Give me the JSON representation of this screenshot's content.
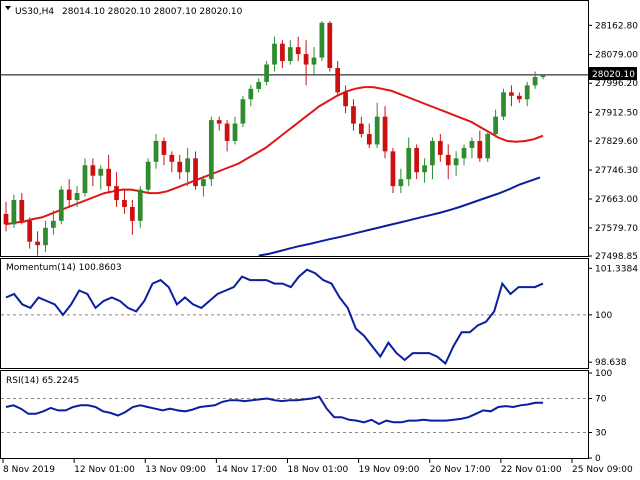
{
  "header": {
    "symbol_label": "US30,H4",
    "ohlc_label": "28014.10 28020.10 28007.10 28020.10"
  },
  "colors": {
    "background": "#ffffff",
    "bull_candle": "#2e8b2e",
    "bear_candle": "#cc1010",
    "ma_fast": "#e01515",
    "ma_slow": "#0a1f9e",
    "indicator_line": "#0a1f9e",
    "price_tag_bg": "#000000",
    "price_tag_text": "#ffffff"
  },
  "chart_data": [
    {
      "type": "candlestick",
      "title": "US30,H4",
      "ylim": [
        27498.85,
        28230
      ],
      "y_ticks": [
        "28162.80",
        "28079.00",
        "27996.20",
        "27912.50",
        "27829.60",
        "27746.30",
        "27663.00",
        "27579.70",
        "27498.85"
      ],
      "last_price_label": "28020.10",
      "last_price": 28020.1,
      "candles": [
        [
          27620,
          27655,
          27570,
          27590
        ],
        [
          27590,
          27675,
          27580,
          27660
        ],
        [
          27660,
          27680,
          27590,
          27600
        ],
        [
          27600,
          27610,
          27520,
          27540
        ],
        [
          27540,
          27570,
          27500,
          27530
        ],
        [
          27530,
          27600,
          27510,
          27580
        ],
        [
          27580,
          27630,
          27560,
          27600
        ],
        [
          27600,
          27700,
          27590,
          27690
        ],
        [
          27690,
          27720,
          27640,
          27660
        ],
        [
          27660,
          27700,
          27640,
          27680
        ],
        [
          27680,
          27780,
          27670,
          27760
        ],
        [
          27760,
          27780,
          27700,
          27730
        ],
        [
          27730,
          27760,
          27690,
          27750
        ],
        [
          27750,
          27790,
          27680,
          27700
        ],
        [
          27700,
          27740,
          27640,
          27660
        ],
        [
          27660,
          27690,
          27620,
          27640
        ],
        [
          27640,
          27660,
          27560,
          27600
        ],
        [
          27600,
          27700,
          27580,
          27690
        ],
        [
          27690,
          27780,
          27680,
          27770
        ],
        [
          27770,
          27850,
          27750,
          27830
        ],
        [
          27830,
          27840,
          27760,
          27790
        ],
        [
          27790,
          27800,
          27740,
          27770
        ],
        [
          27770,
          27790,
          27720,
          27740
        ],
        [
          27740,
          27810,
          27700,
          27780
        ],
        [
          27780,
          27800,
          27690,
          27700
        ],
        [
          27700,
          27730,
          27670,
          27720
        ],
        [
          27720,
          27900,
          27700,
          27890
        ],
        [
          27890,
          27900,
          27860,
          27880
        ],
        [
          27880,
          27890,
          27800,
          27830
        ],
        [
          27830,
          27900,
          27820,
          27880
        ],
        [
          27880,
          27960,
          27870,
          27950
        ],
        [
          27950,
          27990,
          27930,
          27980
        ],
        [
          27980,
          28010,
          27970,
          28000
        ],
        [
          28000,
          28060,
          27990,
          28050
        ],
        [
          28050,
          28130,
          28030,
          28110
        ],
        [
          28110,
          28120,
          28040,
          28060
        ],
        [
          28060,
          28120,
          28050,
          28100
        ],
        [
          28100,
          28130,
          28060,
          28080
        ],
        [
          28080,
          28120,
          27990,
          28050
        ],
        [
          28050,
          28100,
          28020,
          28070
        ],
        [
          28070,
          28175,
          28060,
          28170
        ],
        [
          28170,
          28175,
          28030,
          28040
        ],
        [
          28040,
          28060,
          27960,
          27970
        ],
        [
          27970,
          27990,
          27910,
          27930
        ],
        [
          27930,
          27950,
          27860,
          27880
        ],
        [
          27880,
          27900,
          27840,
          27850
        ],
        [
          27850,
          27880,
          27810,
          27820
        ],
        [
          27820,
          27940,
          27810,
          27900
        ],
        [
          27900,
          27930,
          27780,
          27800
        ],
        [
          27800,
          27810,
          27680,
          27700
        ],
        [
          27700,
          27750,
          27680,
          27720
        ],
        [
          27720,
          27840,
          27700,
          27810
        ],
        [
          27810,
          27820,
          27720,
          27740
        ],
        [
          27740,
          27780,
          27710,
          27760
        ],
        [
          27760,
          27840,
          27720,
          27830
        ],
        [
          27830,
          27850,
          27770,
          27790
        ],
        [
          27790,
          27820,
          27720,
          27760
        ],
        [
          27760,
          27800,
          27730,
          27780
        ],
        [
          27780,
          27820,
          27760,
          27810
        ],
        [
          27810,
          27840,
          27780,
          27830
        ],
        [
          27830,
          27860,
          27770,
          27780
        ],
        [
          27780,
          27860,
          27770,
          27850
        ],
        [
          27850,
          27920,
          27840,
          27900
        ],
        [
          27900,
          27980,
          27890,
          27970
        ],
        [
          27970,
          27990,
          27930,
          27960
        ],
        [
          27960,
          27970,
          27940,
          27950
        ],
        [
          27950,
          28000,
          27930,
          27990
        ],
        [
          27990,
          28030,
          27980,
          28014.1
        ],
        [
          28014.1,
          28020.1,
          28007.1,
          28020.1
        ]
      ],
      "ma_fast": [
        27590,
        27595,
        27598,
        27605,
        27610,
        27620,
        27630,
        27640,
        27650,
        27660,
        27670,
        27680,
        27685,
        27690,
        27690,
        27685,
        27680,
        27680,
        27685,
        27695,
        27705,
        27715,
        27725,
        27735,
        27745,
        27755,
        27765,
        27780,
        27795,
        27810,
        27830,
        27850,
        27870,
        27890,
        27910,
        27930,
        27945,
        27960,
        27972,
        27980,
        27985,
        27985,
        27980,
        27975,
        27965,
        27955,
        27945,
        27935,
        27925,
        27915,
        27905,
        27895,
        27885,
        27870,
        27855,
        27840,
        27830,
        27828,
        27830,
        27835,
        27845
      ],
      "ma_slow": [
        27500,
        27505,
        27512,
        27520,
        27527,
        27533,
        27540,
        27547,
        27553,
        27560,
        27567,
        27574,
        27581,
        27588,
        27595,
        27602,
        27609,
        27616,
        27623,
        27631,
        27640,
        27650,
        27660,
        27670,
        27680,
        27692,
        27705,
        27715,
        27725
      ],
      "ma_slow_start_index": 32
    },
    {
      "type": "line",
      "title": "Momentum(14) 100.8603",
      "series_name": "Momentum(14)",
      "current_value": 100.8603,
      "ylim": [
        98.5,
        101.55
      ],
      "y_ticks": [
        "101.3384",
        "100",
        "98.638"
      ],
      "dashed_level": 100,
      "values": [
        100.5,
        100.6,
        100.3,
        100.2,
        100.5,
        100.4,
        100.3,
        100.0,
        100.3,
        100.7,
        100.6,
        100.2,
        100.4,
        100.5,
        100.4,
        100.2,
        100.1,
        100.4,
        100.9,
        101.0,
        100.8,
        100.3,
        100.5,
        100.3,
        100.2,
        100.4,
        100.6,
        100.7,
        100.8,
        101.1,
        101.0,
        101.0,
        101.0,
        100.9,
        100.9,
        100.8,
        101.1,
        101.3,
        101.2,
        101.0,
        100.9,
        100.5,
        100.2,
        99.6,
        99.4,
        99.1,
        98.8,
        99.2,
        98.9,
        98.7,
        98.9,
        98.9,
        98.9,
        98.8,
        98.6,
        99.1,
        99.5,
        99.5,
        99.7,
        99.8,
        100.1,
        100.9,
        100.6,
        100.8,
        100.8,
        100.8,
        100.9
      ]
    },
    {
      "type": "line",
      "title": "RSI(14) 65.2245",
      "series_name": "RSI(14)",
      "current_value": 65.2245,
      "ylim": [
        0,
        100
      ],
      "y_ticks": [
        "100",
        "70",
        "30",
        "0"
      ],
      "dashed_levels": [
        70,
        30
      ],
      "values": [
        60,
        62,
        58,
        52,
        52,
        55,
        59,
        56,
        56,
        60,
        62,
        62,
        60,
        55,
        53,
        50,
        54,
        60,
        62,
        60,
        58,
        56,
        58,
        56,
        55,
        57,
        60,
        61,
        62,
        66,
        68,
        68,
        67,
        68,
        69,
        70,
        68,
        67,
        68,
        68,
        69,
        70,
        72,
        58,
        48,
        48,
        45,
        44,
        42,
        45,
        40,
        44,
        42,
        42,
        44,
        44,
        45,
        44,
        44,
        44,
        45,
        46,
        48,
        52,
        56,
        55,
        60,
        61,
        60,
        62,
        63,
        65,
        65
      ]
    },
    {
      "type": "time-axis",
      "x_tick_labels": [
        "8 Nov 2019",
        "12 Nov 01:00",
        "13 Nov 09:00",
        "14 Nov 17:00",
        "18 Nov 01:00",
        "19 Nov 09:00",
        "20 Nov 17:00",
        "22 Nov 01:00",
        "25 Nov 09:00"
      ]
    }
  ]
}
